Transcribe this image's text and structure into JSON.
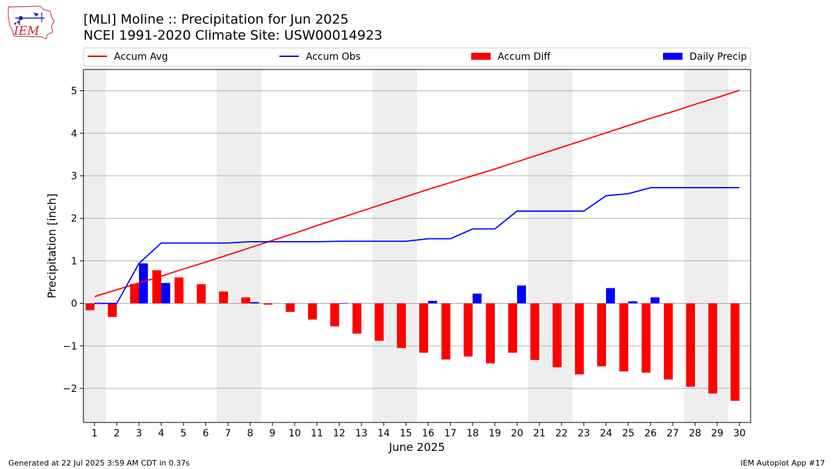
{
  "header": {
    "title_line1": "[MLI] Moline :: Precipitation for Jun 2025",
    "title_line2": "NCEI 1991-2020 Climate Site: USW00014923",
    "logo_text": "IEM"
  },
  "footer": {
    "generated": "Generated at 22 Jul 2025 3:59 AM CDT in 0.37s",
    "app": "IEM Autoplot App #17"
  },
  "colors": {
    "accum_avg": "#ff0000",
    "accum_obs": "#0000ff",
    "accum_diff": "#ff0000",
    "daily_precip": "#0000ff",
    "weekend_shade": "#eeeeee",
    "grid": "#b0b0b0"
  },
  "chart_data": {
    "type": "bar",
    "xlabel": "June 2025",
    "ylabel": "Precipitation [inch]",
    "ylim": [
      -2.8,
      5.5
    ],
    "yticks": [
      -2,
      -1,
      0,
      1,
      2,
      3,
      4,
      5
    ],
    "grid": "horizontal",
    "legend_placement": "top",
    "x": [
      1,
      2,
      3,
      4,
      5,
      6,
      7,
      8,
      9,
      10,
      11,
      12,
      13,
      14,
      15,
      16,
      17,
      18,
      19,
      20,
      21,
      22,
      23,
      24,
      25,
      26,
      27,
      28,
      29,
      30
    ],
    "shaded_days": [
      1,
      7,
      8,
      14,
      15,
      21,
      22,
      28,
      29
    ],
    "legend": [
      {
        "label": "Accum Avg",
        "kind": "line",
        "color": "#ff0000"
      },
      {
        "label": "Accum Obs",
        "kind": "line",
        "color": "#0000ff"
      },
      {
        "label": "Accum Diff",
        "kind": "bar",
        "color": "#ff0000"
      },
      {
        "label": "Daily Precip",
        "kind": "bar",
        "color": "#0000ff"
      }
    ],
    "series": [
      {
        "name": "Accum Avg",
        "type": "line",
        "values": [
          0.16,
          0.32,
          0.48,
          0.64,
          0.81,
          0.97,
          1.14,
          1.31,
          1.48,
          1.65,
          1.83,
          2.0,
          2.17,
          2.34,
          2.51,
          2.68,
          2.84,
          3.0,
          3.16,
          3.33,
          3.5,
          3.67,
          3.84,
          4.01,
          4.18,
          4.35,
          4.51,
          4.68,
          4.84,
          5.01
        ]
      },
      {
        "name": "Accum Obs",
        "type": "line",
        "values": [
          0.0,
          0.0,
          0.94,
          1.42,
          1.42,
          1.42,
          1.42,
          1.45,
          1.45,
          1.45,
          1.45,
          1.46,
          1.46,
          1.46,
          1.46,
          1.52,
          1.52,
          1.75,
          1.75,
          2.17,
          2.17,
          2.17,
          2.17,
          2.53,
          2.58,
          2.72,
          2.72,
          2.72,
          2.72,
          2.72
        ]
      },
      {
        "name": "Accum Diff",
        "type": "bar",
        "values": [
          -0.16,
          -0.32,
          0.46,
          0.78,
          0.61,
          0.45,
          0.28,
          0.14,
          -0.03,
          -0.2,
          -0.38,
          -0.54,
          -0.71,
          -0.88,
          -1.05,
          -1.16,
          -1.32,
          -1.25,
          -1.41,
          -1.16,
          -1.33,
          -1.5,
          -1.67,
          -1.48,
          -1.6,
          -1.63,
          -1.79,
          -1.96,
          -2.12,
          -2.29
        ]
      },
      {
        "name": "Daily Precip",
        "type": "bar",
        "values": [
          0.0,
          0.0,
          0.94,
          0.48,
          0.0,
          0.0,
          0.0,
          0.03,
          0.0,
          0.0,
          0.0,
          0.01,
          0.0,
          0.0,
          0.0,
          0.06,
          0.0,
          0.23,
          0.0,
          0.42,
          0.0,
          0.0,
          0.0,
          0.36,
          0.05,
          0.14,
          0.0,
          0.0,
          0.0,
          0.0
        ]
      }
    ]
  }
}
